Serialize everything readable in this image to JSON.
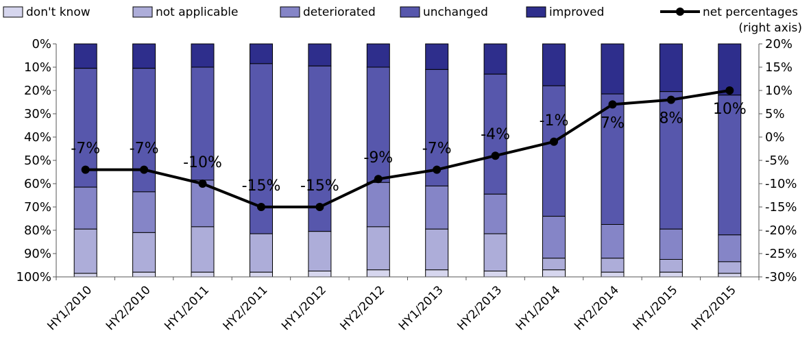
{
  "chart_data": {
    "type": "bar",
    "stacked": true,
    "categories": [
      "HY1/2010",
      "HY2/2010",
      "HY1/2011",
      "HY2/2011",
      "HY1/2012",
      "HY2/2012",
      "HY1/2013",
      "HY2/2013",
      "HY1/2014",
      "HY2/2014",
      "HY1/2015",
      "HY2/2015"
    ],
    "series": [
      {
        "name": "improved",
        "color": "#2e2e8c",
        "values": [
          10.5,
          10.5,
          10,
          8.5,
          9.5,
          10,
          11,
          13,
          18,
          21.5,
          20.5,
          22
        ]
      },
      {
        "name": "unchanged",
        "color": "#5757ac",
        "values": [
          51,
          53,
          48.5,
          73,
          71,
          49.5,
          50,
          51.5,
          56,
          56,
          59,
          60
        ]
      },
      {
        "name": "deteriorated",
        "color": "#8585c7",
        "values": [
          18,
          17.5,
          20,
          0,
          0,
          19,
          18.5,
          17,
          18,
          14.5,
          13,
          11.5
        ]
      },
      {
        "name": "not applicable",
        "color": "#adadd9",
        "values": [
          19,
          17,
          19.5,
          16.5,
          17,
          18.5,
          17.5,
          16,
          5,
          6,
          5.5,
          5
        ]
      },
      {
        "name": "don't know",
        "color": "#d6d6ee",
        "values": [
          1.5,
          2,
          2,
          2,
          2.5,
          3,
          3,
          2.5,
          3,
          2,
          2,
          1.5
        ]
      }
    ],
    "line": {
      "name": "net percentages",
      "legend_label_line1": "net percentages",
      "legend_label_line2": "(right axis)",
      "axis": "right",
      "values": [
        -7,
        -7,
        -10,
        -15,
        -15,
        -9,
        -7,
        -4,
        -1,
        7,
        8,
        10
      ],
      "labels": [
        "-7%",
        "-7%",
        "-10%",
        "-15%",
        "-15%",
        "-9%",
        "-7%",
        "-4%",
        "-1%",
        "7%",
        "8%",
        "10%"
      ]
    },
    "left_axis": {
      "ylim": [
        0,
        100
      ],
      "reversed": true,
      "ticks": [
        "0%",
        "10%",
        "20%",
        "30%",
        "40%",
        "50%",
        "60%",
        "70%",
        "80%",
        "90%",
        "100%"
      ]
    },
    "right_axis": {
      "ylim": [
        -30,
        20
      ],
      "ticks": [
        "20%",
        "15%",
        "10%",
        "5%",
        "0%",
        "-5%",
        "-10%",
        "-15%",
        "-20%",
        "-25%",
        "-30%"
      ]
    },
    "legend_position": "top",
    "grid": false
  }
}
